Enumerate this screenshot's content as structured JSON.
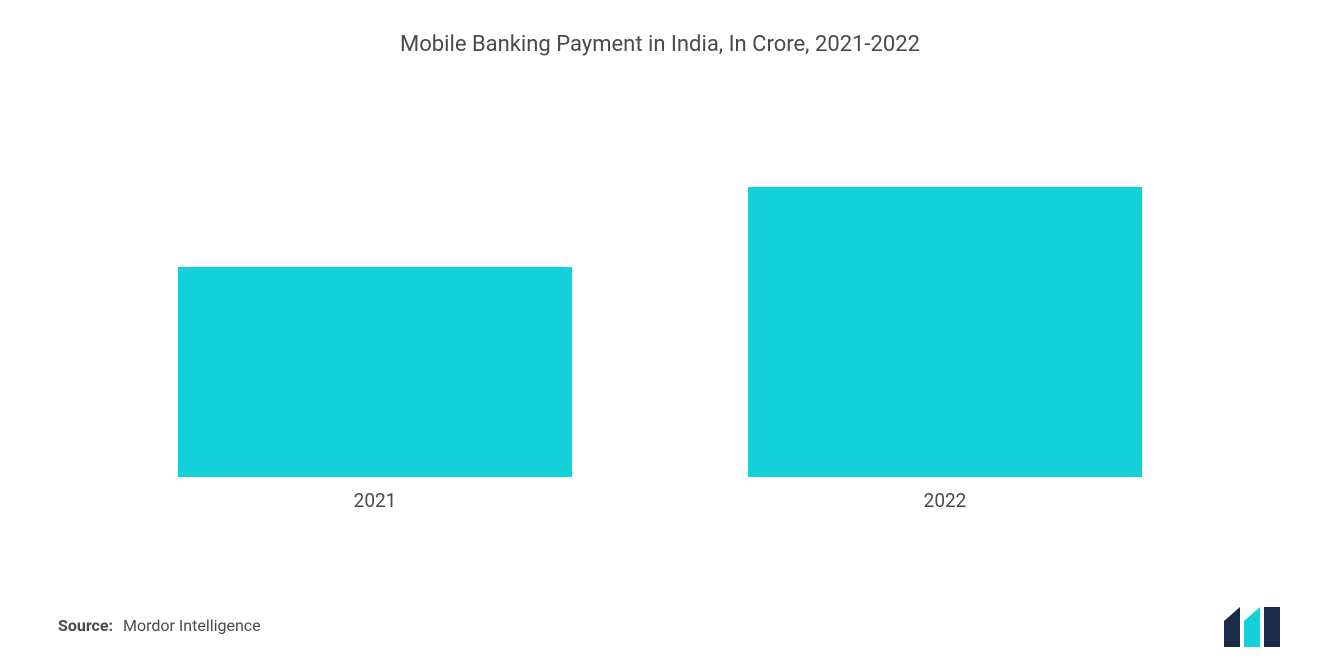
{
  "chart": {
    "type": "bar",
    "title": "Mobile Banking Payment in India, In Crore, 2021-2022",
    "title_fontsize": 22,
    "title_color": "#4a4a4a",
    "categories": [
      "2021",
      "2022"
    ],
    "values": [
      210,
      290
    ],
    "value_max": 405,
    "bar_color": "#14d0d8",
    "bar_width_ratio": 0.82,
    "background_color": "#ffffff",
    "label_fontsize": 19,
    "label_color": "#4a4a4a"
  },
  "source": {
    "label": "Source:",
    "value": "Mordor Intelligence"
  },
  "logo": {
    "fill_dark": "#1a2b4a",
    "fill_accent": "#14d0d8"
  }
}
